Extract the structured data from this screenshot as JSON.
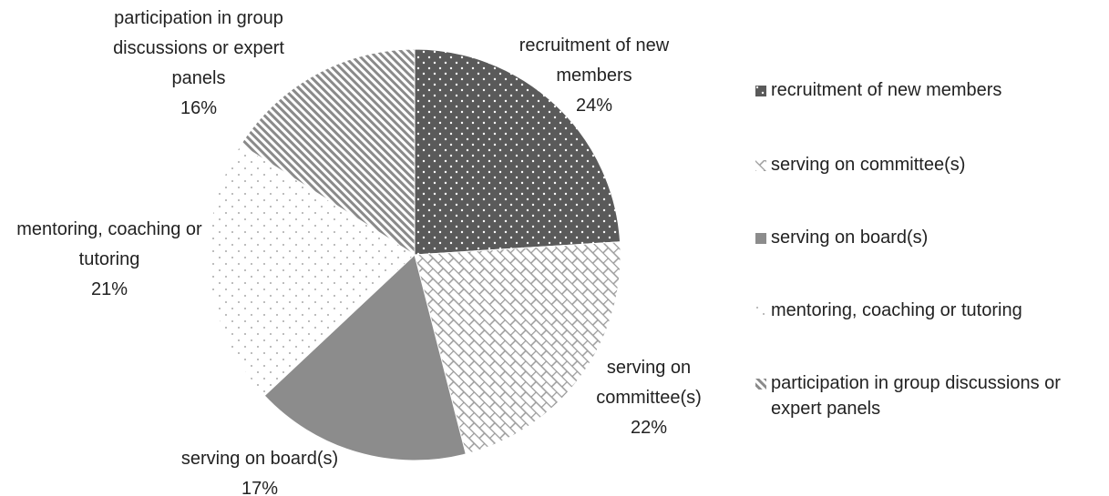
{
  "chart_data": {
    "type": "pie",
    "categories": [
      "recruitment of new members",
      "serving on committee(s)",
      "serving on board(s)",
      "mentoring, coaching or tutoring",
      "participation in group discussions or expert panels"
    ],
    "values": [
      24,
      22,
      17,
      21,
      16
    ],
    "value_labels": [
      "24%",
      "22%",
      "17%",
      "21%",
      "16%"
    ],
    "colors": [
      "#5a5a5a",
      "#9a9a9a",
      "#8c8c8c",
      "#a8a8a8",
      "#8a8a8a"
    ],
    "patterns": [
      "dots",
      "brick",
      "solid",
      "sparse-dots",
      "stripes"
    ],
    "legend": "right"
  }
}
